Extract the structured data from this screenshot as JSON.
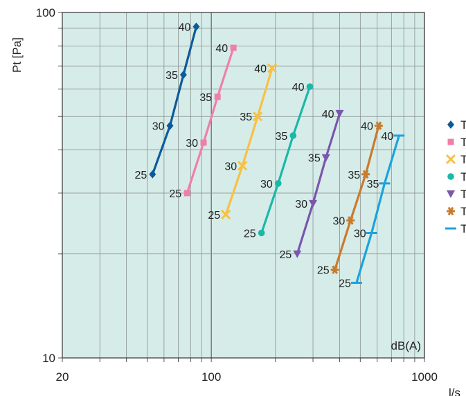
{
  "chart_data": {
    "type": "line",
    "title": "",
    "xlabel": "l/s",
    "ylabel": "Pt [Pa]",
    "x_scale": "log",
    "y_scale": "log",
    "xlim": [
      20,
      1000
    ],
    "ylim": [
      10,
      100
    ],
    "x_tick_labels": [
      "20",
      "100",
      "1000"
    ],
    "y_tick_labels": [
      "10",
      "100"
    ],
    "grid": true,
    "plot_background": "#d6ece8",
    "annotation": "dB(A)",
    "legend_position": "right",
    "series": [
      {
        "name": "T",
        "color": "#0d5a9a",
        "marker": "diamond",
        "points": [
          {
            "x": 53,
            "y": 34,
            "label": "25"
          },
          {
            "x": 64,
            "y": 47,
            "label": "30"
          },
          {
            "x": 74,
            "y": 66,
            "label": "35"
          },
          {
            "x": 85,
            "y": 91,
            "label": "40"
          }
        ]
      },
      {
        "name": "T",
        "color": "#f07fa6",
        "marker": "square",
        "points": [
          {
            "x": 77,
            "y": 30,
            "label": "25"
          },
          {
            "x": 92,
            "y": 42,
            "label": "30"
          },
          {
            "x": 107,
            "y": 57,
            "label": "35"
          },
          {
            "x": 127,
            "y": 79,
            "label": "40"
          }
        ]
      },
      {
        "name": "T",
        "color": "#f6c146",
        "marker": "x",
        "points": [
          {
            "x": 117,
            "y": 26,
            "label": "25"
          },
          {
            "x": 140,
            "y": 36,
            "label": "30"
          },
          {
            "x": 165,
            "y": 50,
            "label": "35"
          },
          {
            "x": 193,
            "y": 69,
            "label": "40"
          }
        ]
      },
      {
        "name": "T",
        "color": "#1ab8a7",
        "marker": "circle",
        "points": [
          {
            "x": 172,
            "y": 23,
            "label": "25"
          },
          {
            "x": 206,
            "y": 32,
            "label": "30"
          },
          {
            "x": 242,
            "y": 44,
            "label": "35"
          },
          {
            "x": 290,
            "y": 61,
            "label": "40"
          }
        ]
      },
      {
        "name": "T",
        "color": "#7a56ad",
        "marker": "triangle-down",
        "points": [
          {
            "x": 253,
            "y": 20,
            "label": "25"
          },
          {
            "x": 300,
            "y": 28,
            "label": "30"
          },
          {
            "x": 345,
            "y": 38,
            "label": "35"
          },
          {
            "x": 400,
            "y": 51,
            "label": "40"
          }
        ]
      },
      {
        "name": "T",
        "color": "#c97a2c",
        "marker": "asterisk",
        "points": [
          {
            "x": 380,
            "y": 18,
            "label": "25"
          },
          {
            "x": 450,
            "y": 25,
            "label": "30"
          },
          {
            "x": 530,
            "y": 34,
            "label": "35"
          },
          {
            "x": 610,
            "y": 47,
            "label": "40"
          }
        ]
      },
      {
        "name": "T",
        "color": "#1aa3de",
        "marker": "dash",
        "points": [
          {
            "x": 480,
            "y": 16.5,
            "label": "25"
          },
          {
            "x": 565,
            "y": 23,
            "label": "30"
          },
          {
            "x": 650,
            "y": 32,
            "label": "35"
          },
          {
            "x": 760,
            "y": 44,
            "label": "40"
          }
        ]
      }
    ]
  }
}
